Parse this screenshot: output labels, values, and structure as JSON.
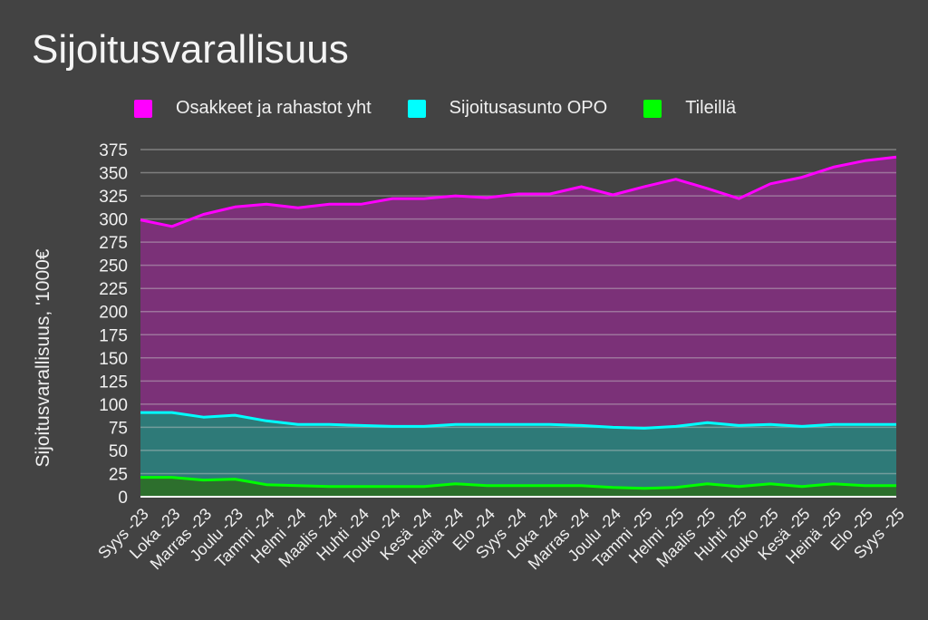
{
  "chart_data": {
    "type": "area",
    "stacked": false,
    "title": "Sijoitusvarallisuus",
    "xlabel": "",
    "ylabel": "Sijoitusvarallisuus, '1000€",
    "ylim": [
      0,
      375
    ],
    "yticks": [
      0,
      25,
      50,
      75,
      100,
      125,
      150,
      175,
      200,
      225,
      250,
      275,
      300,
      325,
      350,
      375
    ],
    "grid": true,
    "legend_position": "top",
    "categories": [
      "Syys -23",
      "Loka -23",
      "Marras -23",
      "Joulu -23",
      "Tammi -24",
      "Helmi -24",
      "Maalis -24",
      "Huhti -24",
      "Touko -24",
      "Kesä -24",
      "Heinä -24",
      "Elo -24",
      "Syys -24",
      "Loka -24",
      "Marras -24",
      "Joulu -24",
      "Tammi -25",
      "Helmi -25",
      "Maalis -25",
      "Huhti -25",
      "Touko -25",
      "Kesä -25",
      "Heinä -25",
      "Elo -25",
      "Syys -25"
    ],
    "series": [
      {
        "name": "Osakkeet ja rahastot yht",
        "line_color": "#ff00ff",
        "fill_color": "#7b3178",
        "values": [
          299,
          292,
          305,
          313,
          316,
          312,
          316,
          316,
          322,
          322,
          325,
          323,
          327,
          327,
          335,
          326,
          335,
          343,
          333,
          322,
          338,
          345,
          356,
          363,
          367
        ]
      },
      {
        "name": "Sijoitusasunto OPO",
        "line_color": "#00ffff",
        "fill_color": "#2e7a78",
        "values": [
          91,
          91,
          86,
          88,
          82,
          78,
          78,
          77,
          76,
          76,
          78,
          78,
          78,
          78,
          77,
          75,
          74,
          76,
          80,
          77,
          78,
          76,
          78,
          78,
          78
        ]
      },
      {
        "name": "Tileillä",
        "line_color": "#00ff00",
        "fill_color": "#2d6f2d",
        "values": [
          21,
          21,
          18,
          19,
          13,
          12,
          11,
          11,
          11,
          11,
          14,
          12,
          12,
          12,
          12,
          10,
          9,
          10,
          14,
          11,
          14,
          11,
          14,
          12,
          12
        ]
      }
    ]
  }
}
